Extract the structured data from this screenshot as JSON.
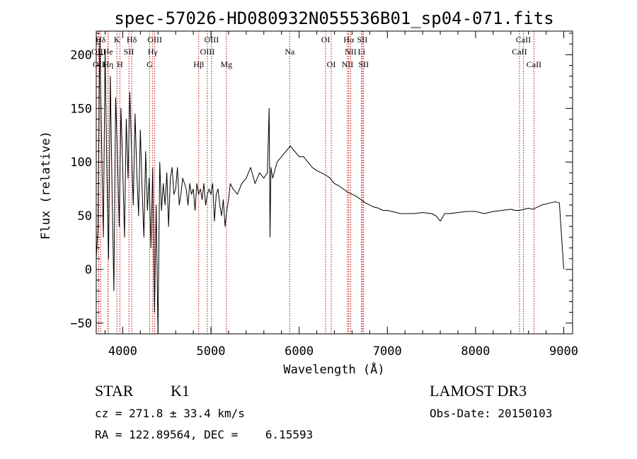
{
  "chart_data": {
    "type": "line",
    "title": "spec-57026-HD080932N055536B01_sp04-071.fits",
    "xlabel": "Wavelength (Å)",
    "ylabel": "Flux (relative)",
    "xlim": [
      3700,
      9100
    ],
    "ylim": [
      -60,
      222
    ],
    "xticks": [
      4000,
      5000,
      6000,
      7000,
      8000,
      9000
    ],
    "yticks": [
      -50,
      0,
      50,
      100,
      150,
      200
    ],
    "xtick_labels": [
      "4000",
      "5000",
      "6000",
      "7000",
      "8000",
      "9000"
    ],
    "ytick_labels": [
      "−50",
      "0",
      "50",
      "100",
      "150",
      "200"
    ],
    "series": [
      {
        "name": "spectrum",
        "x": [
          3700,
          3720,
          3740,
          3760,
          3780,
          3800,
          3820,
          3840,
          3860,
          3880,
          3900,
          3920,
          3940,
          3960,
          3980,
          4000,
          4020,
          4040,
          4060,
          4080,
          4100,
          4120,
          4140,
          4160,
          4180,
          4200,
          4220,
          4240,
          4260,
          4280,
          4300,
          4320,
          4340,
          4360,
          4380,
          4400,
          4420,
          4440,
          4460,
          4480,
          4500,
          4520,
          4540,
          4560,
          4580,
          4600,
          4620,
          4640,
          4660,
          4680,
          4700,
          4720,
          4740,
          4760,
          4780,
          4800,
          4820,
          4840,
          4860,
          4880,
          4900,
          4920,
          4940,
          4960,
          4980,
          5000,
          5020,
          5040,
          5060,
          5080,
          5100,
          5120,
          5140,
          5160,
          5180,
          5200,
          5220,
          5250,
          5300,
          5350,
          5400,
          5450,
          5500,
          5550,
          5600,
          5640,
          5660,
          5670,
          5680,
          5700,
          5750,
          5800,
          5850,
          5900,
          5950,
          6000,
          6050,
          6100,
          6150,
          6200,
          6250,
          6300,
          6350,
          6400,
          6450,
          6500,
          6550,
          6600,
          6650,
          6700,
          6750,
          6800,
          6850,
          6900,
          6950,
          7000,
          7050,
          7100,
          7150,
          7200,
          7300,
          7400,
          7500,
          7550,
          7600,
          7650,
          7700,
          7800,
          7900,
          8000,
          8100,
          8200,
          8300,
          8400,
          8450,
          8500,
          8550,
          8600,
          8650,
          8700,
          8750,
          8800,
          8850,
          8900,
          8950,
          9000
        ],
        "y": [
          10,
          40,
          215,
          120,
          30,
          205,
          90,
          10,
          180,
          70,
          -20,
          160,
          110,
          40,
          150,
          95,
          30,
          140,
          85,
          165,
          110,
          60,
          145,
          90,
          50,
          130,
          75,
          30,
          110,
          55,
          85,
          20,
          95,
          -40,
          60,
          -60,
          100,
          55,
          80,
          60,
          90,
          40,
          85,
          95,
          70,
          75,
          95,
          60,
          70,
          85,
          80,
          75,
          60,
          80,
          70,
          75,
          55,
          80,
          70,
          75,
          65,
          80,
          60,
          70,
          75,
          70,
          80,
          45,
          70,
          75,
          60,
          50,
          65,
          40,
          55,
          65,
          80,
          75,
          70,
          80,
          85,
          95,
          80,
          90,
          85,
          90,
          150,
          30,
          95,
          85,
          100,
          105,
          110,
          115,
          110,
          105,
          105,
          100,
          95,
          92,
          90,
          88,
          85,
          80,
          78,
          75,
          72,
          70,
          68,
          65,
          62,
          60,
          58,
          57,
          55,
          55,
          54,
          53,
          52,
          52,
          52,
          53,
          52,
          50,
          45,
          52,
          52,
          53,
          54,
          54,
          52,
          54,
          55,
          56,
          55,
          55,
          56,
          57,
          56,
          58,
          60,
          61,
          62,
          63,
          62,
          0
        ]
      }
    ],
    "lines": [
      {
        "label": "Hδ",
        "x": 3750,
        "row": 0
      },
      {
        "label": "K",
        "x": 3934,
        "row": 0
      },
      {
        "label": "Hδ",
        "x": 4102,
        "row": 0
      },
      {
        "label": "OIII",
        "x": 4363,
        "row": 0
      },
      {
        "label": "OIII",
        "x": 5007,
        "row": 0
      },
      {
        "label": "OI",
        "x": 6300,
        "row": 0
      },
      {
        "label": "Hα",
        "x": 6563,
        "row": 0
      },
      {
        "label": "SII",
        "x": 6716,
        "row": 0
      },
      {
        "label": "CaII",
        "x": 8542,
        "row": 0
      },
      {
        "label": "OIII",
        "x": 3727,
        "row": 1
      },
      {
        "label": "He",
        "x": 3833,
        "row": 1
      },
      {
        "label": "SII",
        "x": 4070,
        "row": 1
      },
      {
        "label": "Hγ",
        "x": 4340,
        "row": 1
      },
      {
        "label": "OIII",
        "x": 4959,
        "row": 1
      },
      {
        "label": "Na",
        "x": 5893,
        "row": 1
      },
      {
        "label": "NII",
        "x": 6584,
        "row": 1
      },
      {
        "label": "Li",
        "x": 6708,
        "row": 1
      },
      {
        "label": "CaII",
        "x": 8498,
        "row": 1
      },
      {
        "label": "OII",
        "x": 3727,
        "row": 2
      },
      {
        "label": "Hη",
        "x": 3835,
        "row": 2
      },
      {
        "label": "H",
        "x": 3968,
        "row": 2
      },
      {
        "label": "G",
        "x": 4305,
        "row": 2
      },
      {
        "label": "Hβ",
        "x": 4861,
        "row": 2
      },
      {
        "label": "Mg",
        "x": 5175,
        "row": 2
      },
      {
        "label": "OI",
        "x": 6364,
        "row": 2
      },
      {
        "label": "NII",
        "x": 6548,
        "row": 2
      },
      {
        "label": "SII",
        "x": 6731,
        "row": 2
      },
      {
        "label": "CaII",
        "x": 8662,
        "row": 2
      }
    ]
  },
  "info": {
    "object_class": "STAR",
    "subclass": "K1",
    "survey": "LAMOST DR3",
    "redshift": "cz = 271.8 ± 33.4 km/s",
    "obs_date": "Obs-Date: 20150103",
    "coords": "RA = 122.89564, DEC =    6.15593"
  }
}
